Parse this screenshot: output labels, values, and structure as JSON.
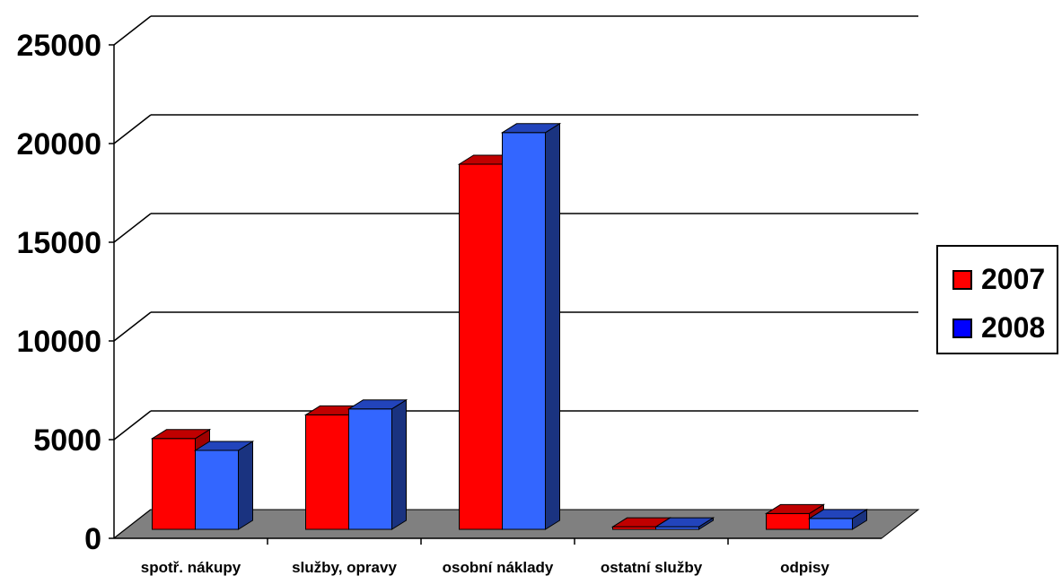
{
  "chart_data": {
    "type": "bar",
    "style": "3d-clustered-column",
    "categories": [
      "spotř. nákupy",
      "služby, opravy",
      "osobní náklady",
      "ostatní služby",
      "odpisy"
    ],
    "series": [
      {
        "name": "2007",
        "color": "#ff0000",
        "values": [
          4600,
          5800,
          18500,
          130,
          800
        ]
      },
      {
        "name": "2008",
        "color": "#3366ff",
        "values": [
          4000,
          6100,
          20100,
          130,
          550
        ]
      }
    ],
    "yticks": [
      "0",
      "5000",
      "10000",
      "15000",
      "20000",
      "25000"
    ],
    "ylim": [
      0,
      25000
    ],
    "grid": true,
    "floor_color": "#808080",
    "legend_position": "right"
  }
}
